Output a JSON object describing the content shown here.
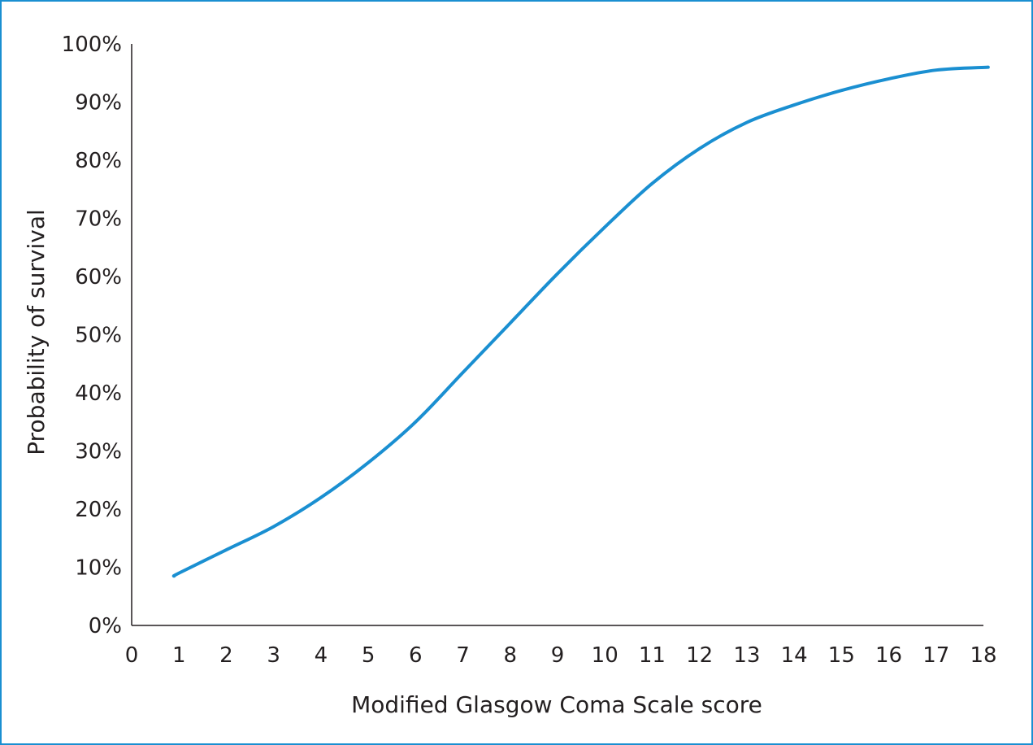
{
  "chart_data": {
    "type": "line",
    "title": "",
    "xlabel": "Modified Glasgow Coma Scale score",
    "ylabel": "Probability of survival",
    "xlim": [
      0,
      18
    ],
    "ylim": [
      0,
      100
    ],
    "x_ticks": [
      "0",
      "1",
      "2",
      "3",
      "4",
      "5",
      "6",
      "7",
      "8",
      "9",
      "10",
      "11",
      "12",
      "13",
      "14",
      "15",
      "16",
      "17",
      "18"
    ],
    "y_ticks": [
      "0%",
      "10%",
      "20%",
      "30%",
      "40%",
      "50%",
      "60%",
      "70%",
      "80%",
      "90%",
      "100%"
    ],
    "grid": false,
    "series": [
      {
        "color": "#1a8fd1",
        "x": [
          0.9,
          1,
          2,
          3,
          4,
          5,
          6,
          7,
          8,
          9,
          10,
          11,
          12,
          13,
          14,
          15,
          16,
          17,
          18.1
        ],
        "y": [
          8.5,
          9,
          13,
          17,
          22,
          28,
          35,
          43.5,
          52,
          60.5,
          68.5,
          76,
          82,
          86.5,
          89.5,
          92,
          94,
          95.5,
          96
        ]
      }
    ]
  }
}
